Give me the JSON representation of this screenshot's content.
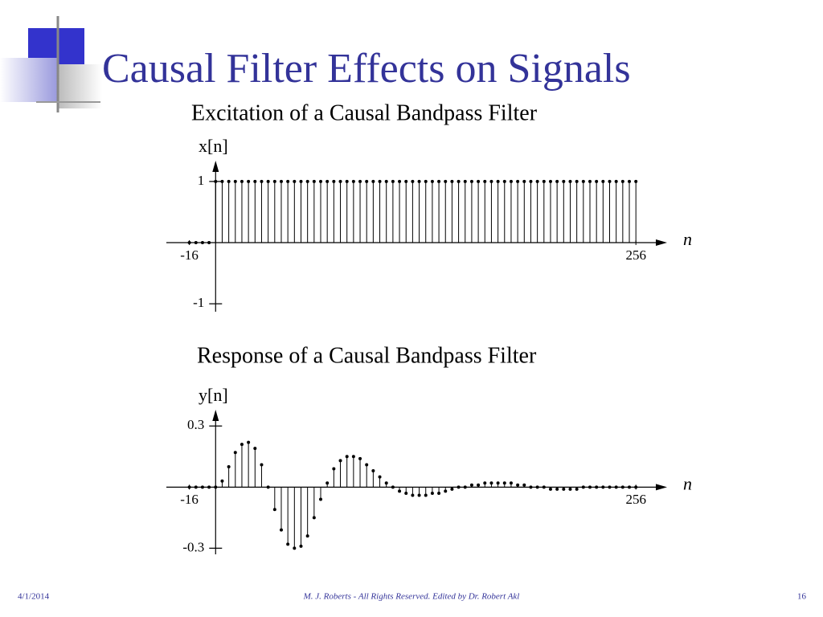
{
  "slide": {
    "title": "Causal Filter Effects on Signals"
  },
  "footer": {
    "date": "4/1/2014",
    "credit": "M. J. Roberts - All Rights Reserved. Edited by Dr. Robert Akl",
    "page": "16"
  },
  "chart_data": [
    {
      "type": "stem",
      "title": "Excitation of a Causal Bandpass Filter",
      "y_label": "x[n]",
      "x_label": "n",
      "x": [
        -16,
        -12,
        -8,
        -4,
        0,
        4,
        8,
        12,
        16,
        20,
        24,
        28,
        32,
        36,
        40,
        44,
        48,
        52,
        56,
        60,
        64,
        68,
        72,
        76,
        80,
        84,
        88,
        92,
        96,
        100,
        104,
        108,
        112,
        116,
        120,
        124,
        128,
        132,
        136,
        140,
        144,
        148,
        152,
        156,
        160,
        164,
        168,
        172,
        176,
        180,
        184,
        188,
        192,
        196,
        200,
        204,
        208,
        212,
        216,
        220,
        224,
        228,
        232,
        236,
        240,
        244,
        248,
        252,
        256
      ],
      "values": [
        0,
        0,
        0,
        0,
        1,
        1,
        1,
        1,
        1,
        1,
        1,
        1,
        1,
        1,
        1,
        1,
        1,
        1,
        1,
        1,
        1,
        1,
        1,
        1,
        1,
        1,
        1,
        1,
        1,
        1,
        1,
        1,
        1,
        1,
        1,
        1,
        1,
        1,
        1,
        1,
        1,
        1,
        1,
        1,
        1,
        1,
        1,
        1,
        1,
        1,
        1,
        1,
        1,
        1,
        1,
        1,
        1,
        1,
        1,
        1,
        1,
        1,
        1,
        1,
        1,
        1,
        1,
        1,
        1
      ],
      "color": "#000000",
      "xlim": [
        -30,
        275
      ],
      "xticks": [
        -16,
        256
      ],
      "ylim": [
        -1.13,
        1.34
      ],
      "yticks": [
        1,
        -1
      ]
    },
    {
      "type": "stem",
      "title": "Response of a Causal Bandpass Filter",
      "y_label": "y[n]",
      "x_label": "n",
      "x": [
        -16,
        -12,
        -8,
        -4,
        0,
        4,
        8,
        12,
        16,
        20,
        24,
        28,
        32,
        36,
        40,
        44,
        48,
        52,
        56,
        60,
        64,
        68,
        72,
        76,
        80,
        84,
        88,
        92,
        96,
        100,
        104,
        108,
        112,
        116,
        120,
        124,
        128,
        132,
        136,
        140,
        144,
        148,
        152,
        156,
        160,
        164,
        168,
        172,
        176,
        180,
        184,
        188,
        192,
        196,
        200,
        204,
        208,
        212,
        216,
        220,
        224,
        228,
        232,
        236,
        240,
        244,
        248,
        252,
        256
      ],
      "values": [
        0,
        0,
        0,
        0,
        0,
        0.03,
        0.1,
        0.17,
        0.21,
        0.22,
        0.19,
        0.11,
        0,
        -0.11,
        -0.21,
        -0.28,
        -0.3,
        -0.29,
        -0.24,
        -0.15,
        -0.06,
        0.02,
        0.09,
        0.13,
        0.15,
        0.15,
        0.14,
        0.11,
        0.08,
        0.05,
        0.02,
        0,
        -0.02,
        -0.03,
        -0.04,
        -0.04,
        -0.04,
        -0.03,
        -0.03,
        -0.02,
        -0.01,
        0,
        0,
        0.01,
        0.01,
        0.02,
        0.02,
        0.02,
        0.02,
        0.02,
        0.01,
        0.01,
        0,
        0,
        0,
        -0.01,
        -0.01,
        -0.01,
        -0.01,
        -0.01,
        0,
        0,
        0,
        0,
        0,
        0,
        0,
        0,
        0
      ],
      "color": "#000000",
      "xlim": [
        -30,
        275
      ],
      "xticks": [
        -16,
        256
      ],
      "ylim": [
        -0.33,
        0.38
      ],
      "yticks": [
        0.3,
        -0.3
      ]
    }
  ]
}
